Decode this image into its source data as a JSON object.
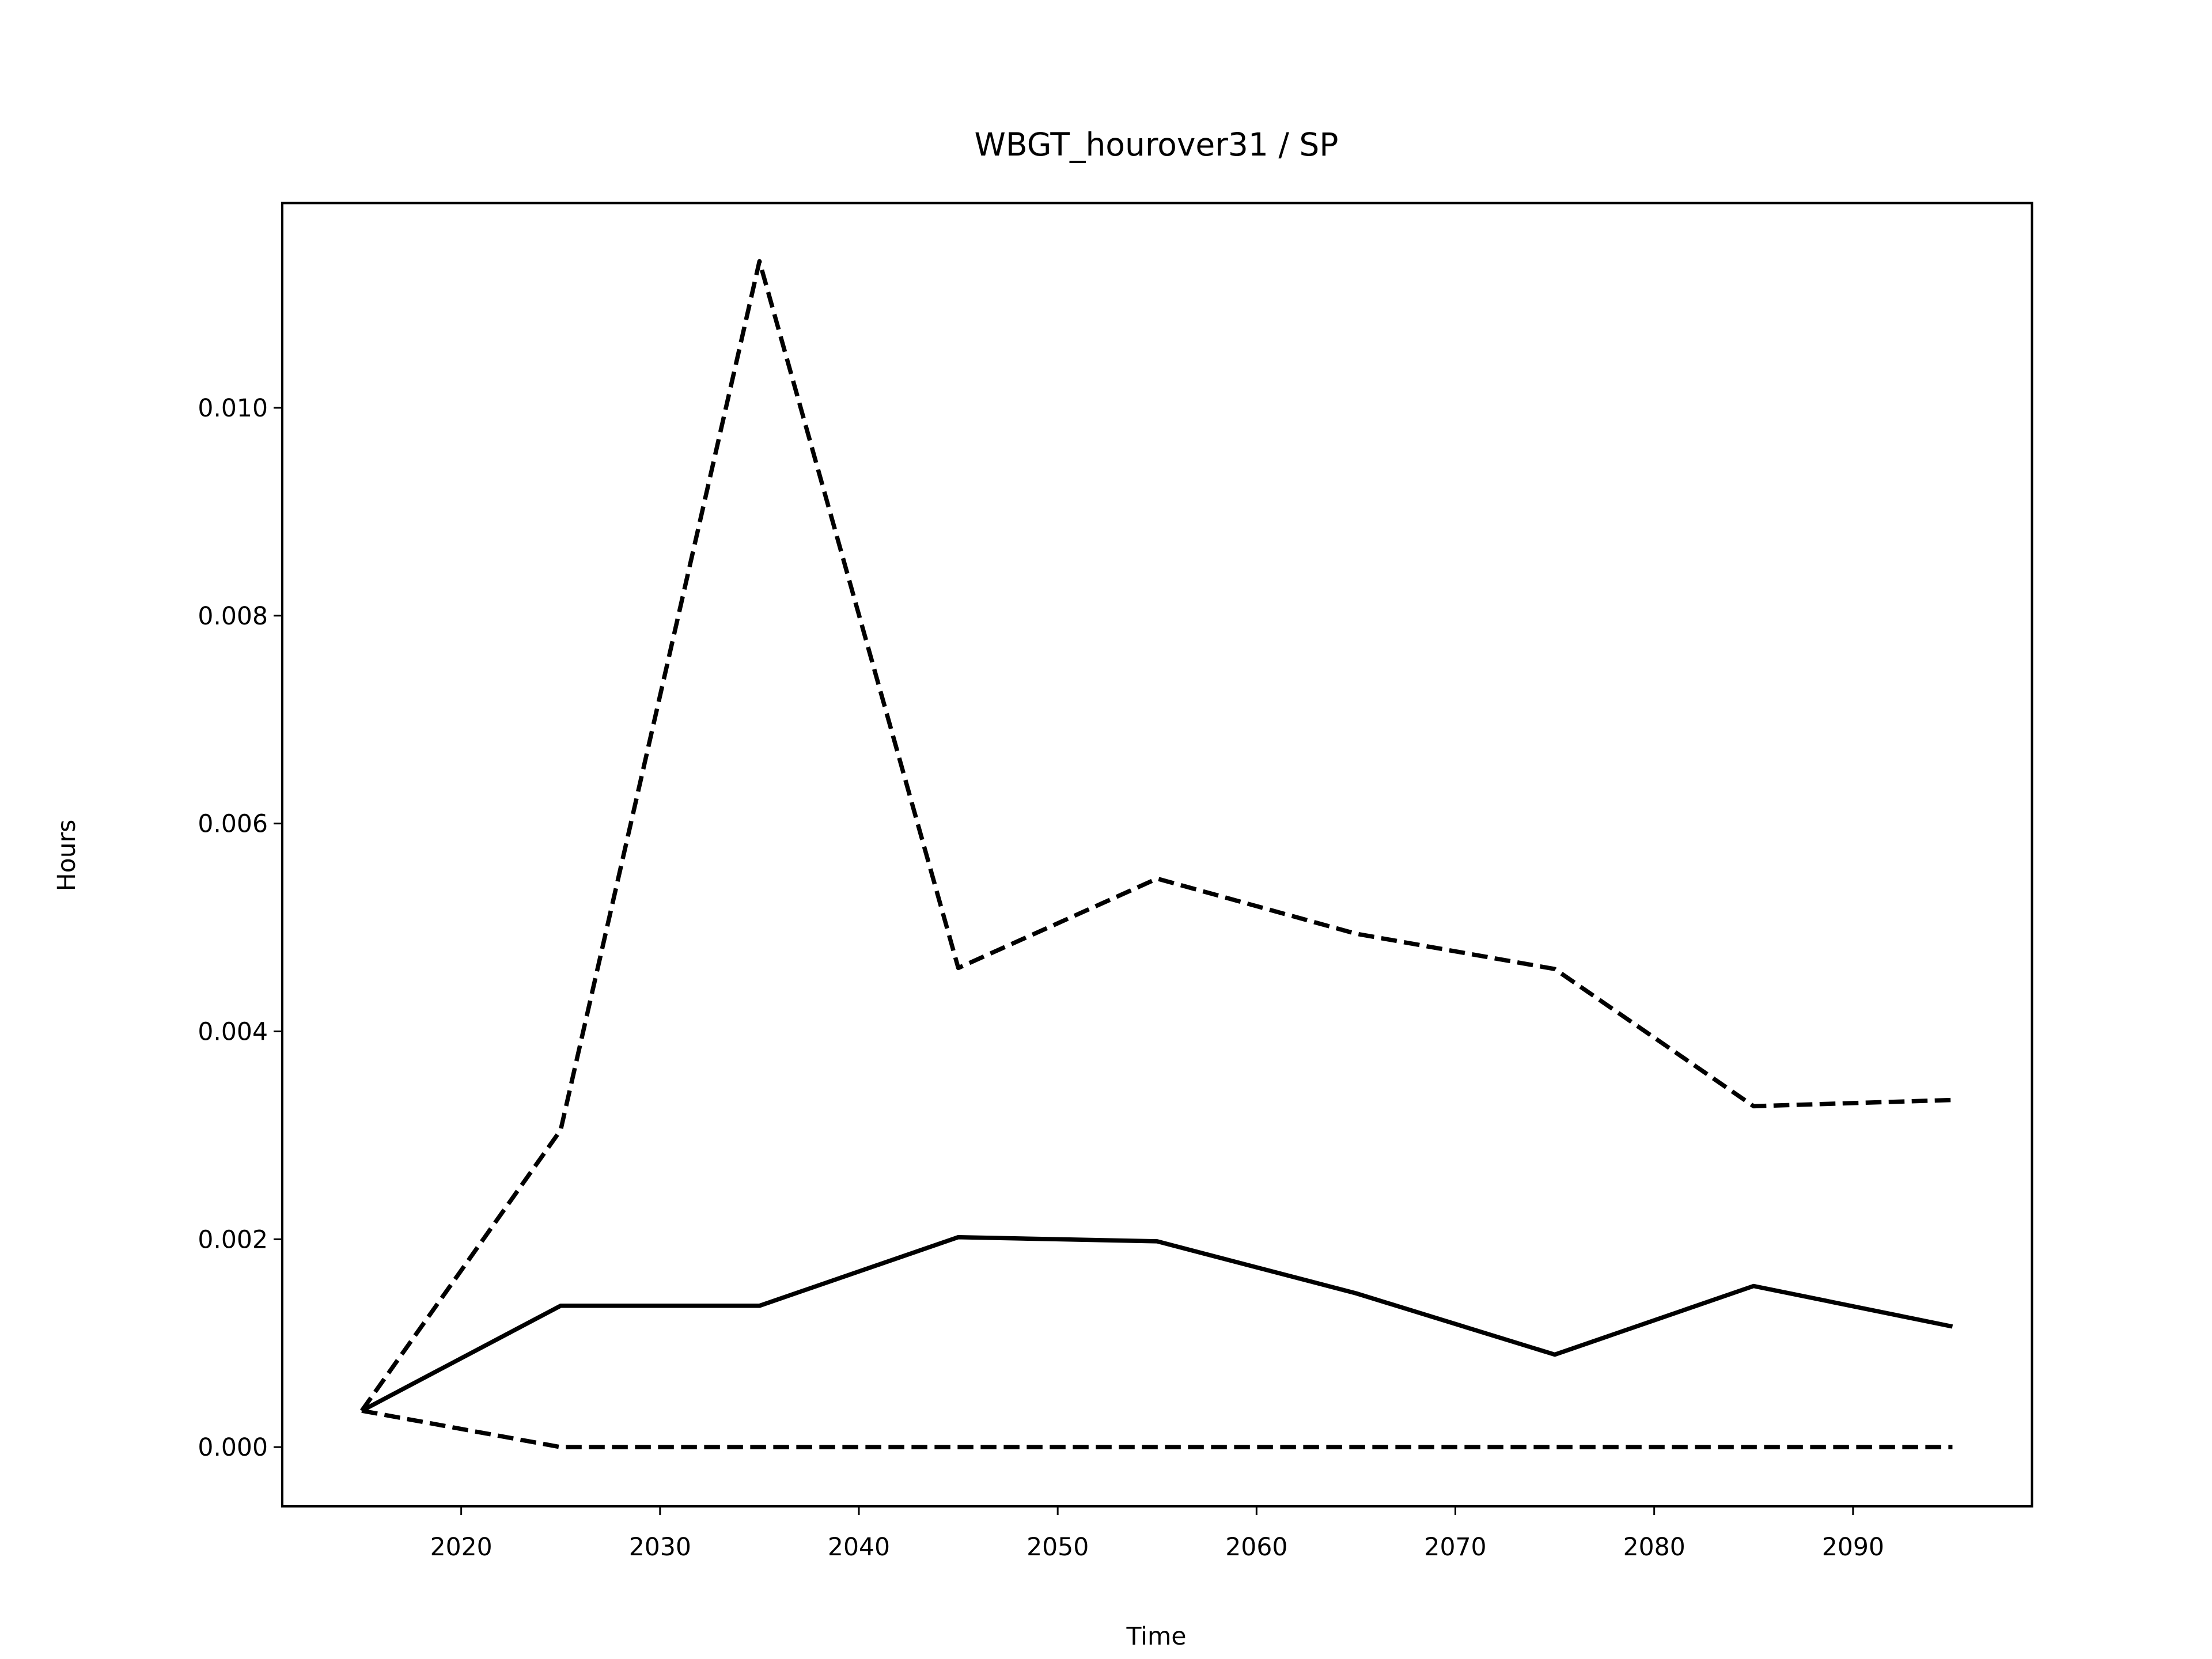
{
  "chart_data": {
    "type": "line",
    "title": "WBGT_hourover31 / SP",
    "x_label": "Time",
    "y_label": "Hours",
    "x": [
      2015,
      2025,
      2035,
      2045,
      2055,
      2065,
      2075,
      2085,
      2095
    ],
    "series": [
      {
        "color": "#000000",
        "linestyle": "solid",
        "values": [
          0.00035,
          0.00136,
          0.00136,
          0.00202,
          0.00198,
          0.00148,
          0.00089,
          0.00155,
          0.00116
        ]
      },
      {
        "color": "#000000",
        "linestyle": "dashed",
        "values": [
          0.00035,
          0.00305,
          0.01141,
          0.00461,
          0.00547,
          0.00494,
          0.0046,
          0.00328,
          0.00334
        ]
      },
      {
        "color": "#000000",
        "linestyle": "dashed",
        "values": [
          0.00035,
          0,
          0,
          0,
          0,
          0,
          0,
          0,
          0
        ]
      }
    ],
    "xlim": [
      2011,
      2099
    ],
    "ylim": [
      -0.00057,
      0.01197
    ],
    "xticks": [
      2020,
      2030,
      2040,
      2050,
      2060,
      2070,
      2080,
      2090
    ],
    "yticks": [
      {
        "value": 0,
        "label": "0.000"
      },
      {
        "value": 0.002,
        "label": "0.002"
      },
      {
        "value": 0.004,
        "label": "0.004"
      },
      {
        "value": 0.006,
        "label": "0.006"
      },
      {
        "value": 0.008,
        "label": "0.008"
      },
      {
        "value": 0.01,
        "label": "0.010"
      }
    ],
    "grid": false
  }
}
